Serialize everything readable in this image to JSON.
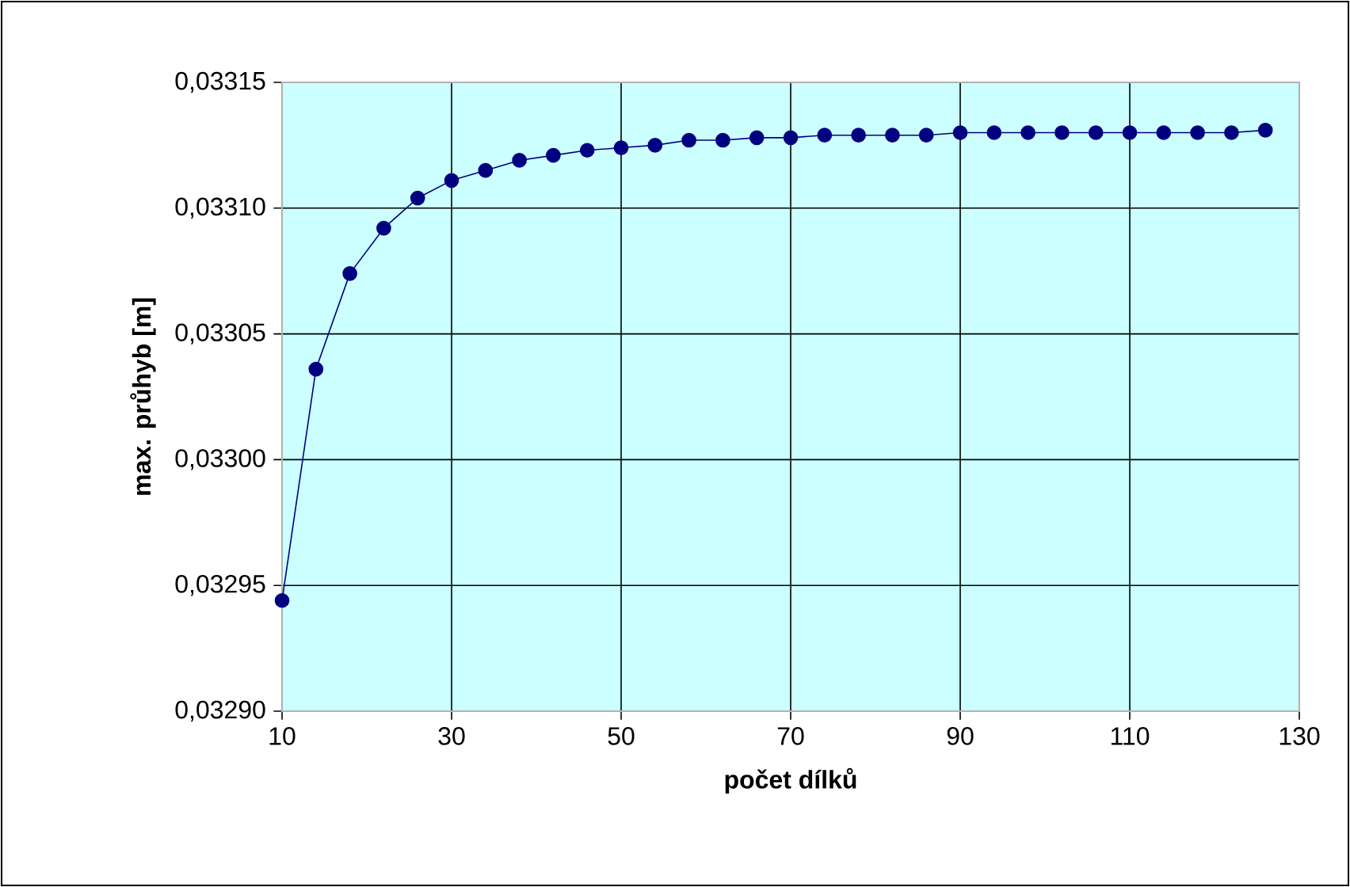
{
  "chart_data": {
    "type": "line",
    "xlabel": "počet dílků",
    "ylabel": "max. průhyb [m]",
    "x": [
      10,
      14,
      18,
      22,
      26,
      30,
      34,
      38,
      42,
      46,
      50,
      54,
      58,
      62,
      66,
      70,
      74,
      78,
      82,
      86,
      90,
      94,
      98,
      102,
      106,
      110,
      114,
      118,
      122,
      126
    ],
    "series": [
      {
        "color": "#000080",
        "values": [
          0.032944,
          0.033036,
          0.033074,
          0.033092,
          0.033104,
          0.033111,
          0.033115,
          0.033119,
          0.033121,
          0.033123,
          0.033124,
          0.033125,
          0.033127,
          0.033127,
          0.033128,
          0.033128,
          0.033129,
          0.033129,
          0.033129,
          0.033129,
          0.03313,
          0.03313,
          0.03313,
          0.03313,
          0.03313,
          0.03313,
          0.03313,
          0.03313,
          0.03313,
          0.033131
        ]
      }
    ],
    "xlim": [
      10,
      130
    ],
    "xticks": [
      10,
      30,
      50,
      70,
      90,
      110,
      130
    ],
    "ylim": [
      0.0329,
      0.03315
    ],
    "yticks": [
      {
        "value": 0.0329,
        "label": "0,03290"
      },
      {
        "value": 0.03295,
        "label": "0,03295"
      },
      {
        "value": 0.033,
        "label": "0,03300"
      },
      {
        "value": 0.03305,
        "label": "0,03305"
      },
      {
        "value": 0.0331,
        "label": "0,03310"
      },
      {
        "value": 0.03315,
        "label": "0,03315"
      }
    ],
    "grid": true,
    "marker": "circle",
    "line_style": "solid"
  }
}
